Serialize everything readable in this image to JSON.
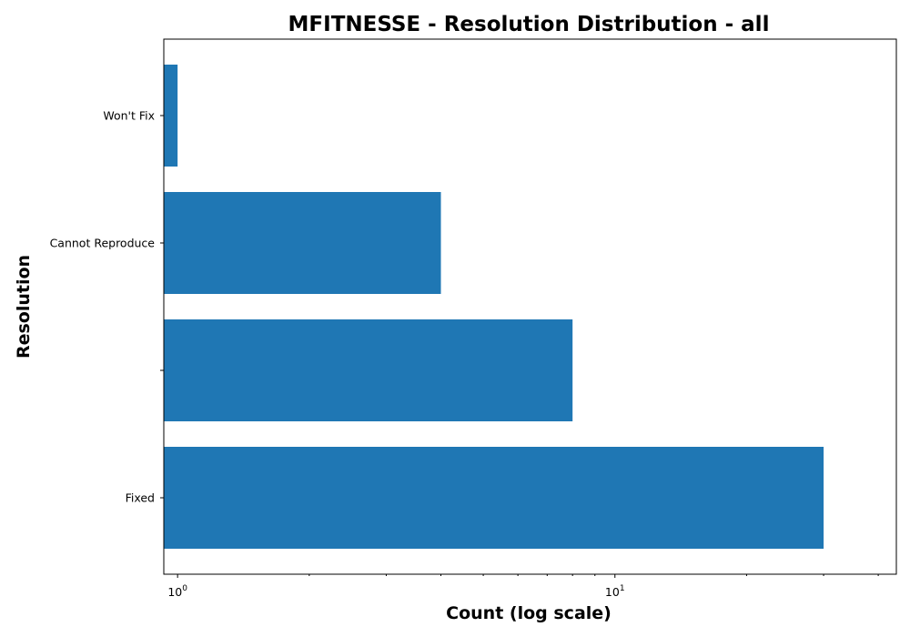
{
  "chart_data": {
    "type": "bar",
    "orientation": "horizontal",
    "title": "MFITNESSE - Resolution Distribution - all",
    "xlabel": "Count (log scale)",
    "ylabel": "Resolution",
    "x_scale": "log",
    "xlim": [
      0.93,
      44
    ],
    "grid": false,
    "colors": {
      "bar": "#1f77b4"
    },
    "categories": [
      "Fixed",
      "",
      "Cannot Reproduce",
      "Won't Fix"
    ],
    "values": [
      30,
      8,
      4,
      1
    ],
    "x_ticks": [
      {
        "value": 1,
        "base": "10",
        "exp": "0"
      },
      {
        "value": 10,
        "base": "10",
        "exp": "1"
      }
    ],
    "x_minor_ticks": [
      2,
      3,
      4,
      5,
      6,
      7,
      8,
      9,
      20,
      30,
      40
    ]
  }
}
